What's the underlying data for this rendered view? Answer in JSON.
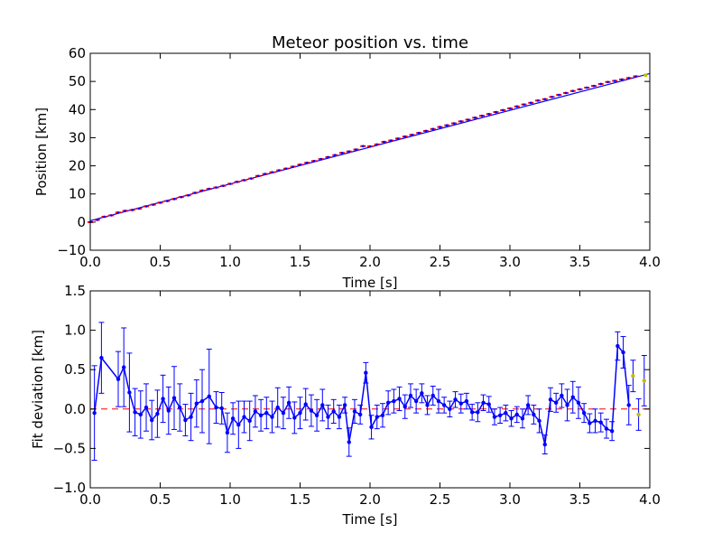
{
  "chart_data": [
    {
      "type": "line",
      "title": "Meteor position vs. time",
      "xlabel": "Time [s]",
      "ylabel": "Position [km]",
      "xlim": [
        0.0,
        4.0
      ],
      "ylim": [
        -10,
        60
      ],
      "xticks": [
        "0.0",
        "0.5",
        "1.0",
        "1.5",
        "2.0",
        "2.5",
        "3.0",
        "3.5",
        "4.0"
      ],
      "yticks": [
        "−10",
        "0",
        "10",
        "20",
        "30",
        "40",
        "50",
        "60"
      ],
      "grid": false,
      "legend": "none",
      "colors": {
        "observed": "#ff0000",
        "fit": "#0000ff",
        "excluded": "#bfbf00"
      },
      "series": [
        {
          "style": "red-points",
          "x": [
            0.0,
            0.05,
            0.1,
            0.15,
            0.2,
            0.25,
            0.3,
            0.35,
            0.4,
            0.45,
            0.5,
            0.55,
            0.6,
            0.65,
            0.7,
            0.75,
            0.8,
            0.85,
            0.9,
            0.95,
            1.0,
            1.05,
            1.1,
            1.15,
            1.2,
            1.25,
            1.3,
            1.35,
            1.4,
            1.45,
            1.5,
            1.55,
            1.6,
            1.65,
            1.7,
            1.75,
            1.8,
            1.85,
            1.9,
            1.95,
            2.0,
            2.05,
            2.1,
            2.15,
            2.2,
            2.25,
            2.3,
            2.35,
            2.4,
            2.45,
            2.5,
            2.55,
            2.6,
            2.65,
            2.7,
            2.75,
            2.8,
            2.85,
            2.9,
            2.95,
            3.0,
            3.05,
            3.1,
            3.15,
            3.2,
            3.25,
            3.3,
            3.35,
            3.4,
            3.45,
            3.5,
            3.55,
            3.6,
            3.65,
            3.7,
            3.75,
            3.8,
            3.85,
            3.9
          ],
          "y": [
            0.0,
            0.8,
            1.9,
            2.4,
            3.4,
            4.0,
            4.3,
            4.8,
            5.6,
            6.2,
            6.9,
            7.5,
            8.2,
            8.9,
            9.5,
            10.4,
            11.2,
            11.8,
            12.3,
            12.9,
            13.6,
            14.3,
            14.9,
            15.5,
            16.4,
            17.1,
            17.7,
            18.4,
            19.0,
            19.7,
            20.4,
            21.1,
            21.7,
            22.4,
            23.1,
            23.8,
            24.6,
            25.1,
            25.8,
            27.0,
            26.9,
            27.6,
            28.5,
            29.0,
            29.7,
            30.4,
            31.0,
            31.7,
            32.4,
            33.1,
            33.8,
            34.4,
            35.1,
            35.8,
            36.4,
            37.1,
            37.8,
            38.4,
            39.1,
            39.8,
            40.4,
            41.1,
            41.8,
            42.4,
            43.2,
            43.7,
            44.5,
            45.2,
            45.9,
            46.6,
            47.2,
            47.8,
            48.4,
            49.1,
            49.8,
            50.2,
            50.7,
            51.2,
            51.8
          ]
        },
        {
          "style": "blue-fit-line",
          "x": [
            0.0,
            4.0
          ],
          "y": [
            0.5,
            52.8
          ]
        }
      ]
    },
    {
      "type": "line",
      "xlabel": "Time [s]",
      "ylabel": "Fit deviation [km]",
      "xlim": [
        0.0,
        4.0
      ],
      "ylim": [
        -1.0,
        1.5
      ],
      "xticks": [
        "0.0",
        "0.5",
        "1.0",
        "1.5",
        "2.0",
        "2.5",
        "3.0",
        "3.5",
        "4.0"
      ],
      "yticks": [
        "−1.0",
        "−0.5",
        "0.0",
        "0.5",
        "1.0",
        "1.5"
      ],
      "grid": false,
      "legend": "none",
      "colors": {
        "residuals": "#0000ff",
        "zero_line": "#ff0000",
        "excluded": "#bfbf00"
      },
      "reference_line_y": 0.0,
      "series": [
        {
          "style": "blue-residuals-with-errorbars",
          "x": [
            0.03,
            0.08,
            0.2,
            0.24,
            0.28,
            0.32,
            0.36,
            0.4,
            0.44,
            0.48,
            0.52,
            0.56,
            0.6,
            0.64,
            0.68,
            0.72,
            0.76,
            0.8,
            0.85,
            0.9,
            0.94,
            0.98,
            1.02,
            1.06,
            1.1,
            1.14,
            1.18,
            1.22,
            1.26,
            1.3,
            1.34,
            1.38,
            1.42,
            1.46,
            1.5,
            1.54,
            1.58,
            1.62,
            1.66,
            1.7,
            1.74,
            1.78,
            1.82,
            1.85,
            1.89,
            1.93,
            1.97,
            2.01,
            2.05,
            2.09,
            2.13,
            2.17,
            2.21,
            2.25,
            2.29,
            2.33,
            2.37,
            2.41,
            2.45,
            2.49,
            2.53,
            2.57,
            2.61,
            2.65,
            2.69,
            2.73,
            2.77,
            2.81,
            2.85,
            2.89,
            2.93,
            2.97,
            3.01,
            3.05,
            3.09,
            3.13,
            3.17,
            3.21,
            3.25,
            3.29,
            3.33,
            3.37,
            3.41,
            3.45,
            3.49,
            3.53,
            3.57,
            3.61,
            3.65,
            3.69,
            3.73,
            3.77,
            3.81,
            3.85
          ],
          "y": [
            -0.05,
            0.65,
            0.38,
            0.53,
            0.21,
            -0.04,
            -0.07,
            0.02,
            -0.14,
            -0.06,
            0.13,
            -0.02,
            0.14,
            0.02,
            -0.14,
            -0.1,
            0.07,
            0.1,
            0.16,
            0.02,
            0.01,
            -0.3,
            -0.12,
            -0.2,
            -0.1,
            -0.15,
            -0.03,
            -0.08,
            -0.05,
            -0.1,
            0.02,
            -0.05,
            0.08,
            -0.11,
            -0.05,
            0.06,
            -0.02,
            -0.08,
            0.05,
            -0.1,
            -0.03,
            -0.1,
            0.05,
            -0.42,
            -0.03,
            -0.07,
            0.46,
            -0.23,
            -0.1,
            -0.08,
            0.08,
            0.1,
            0.13,
            0.03,
            0.17,
            0.1,
            0.2,
            0.05,
            0.17,
            0.1,
            0.05,
            0.0,
            0.12,
            0.07,
            0.1,
            -0.04,
            -0.04,
            0.08,
            0.06,
            -0.1,
            -0.08,
            -0.05,
            -0.12,
            -0.07,
            -0.12,
            0.05,
            -0.07,
            -0.15,
            -0.45,
            0.12,
            0.08,
            0.17,
            0.05,
            0.15,
            0.08,
            -0.05,
            -0.18,
            -0.15,
            -0.17,
            -0.25,
            -0.28,
            0.8,
            0.72,
            0.05
          ],
          "err": [
            0.6,
            0.45,
            0.35,
            0.5,
            0.5,
            0.3,
            0.3,
            0.3,
            0.25,
            0.3,
            0.3,
            0.3,
            0.4,
            0.3,
            0.2,
            0.3,
            0.3,
            0.4,
            0.6,
            0.2,
            0.2,
            0.25,
            0.2,
            0.3,
            0.2,
            0.25,
            0.2,
            0.2,
            0.2,
            0.2,
            0.25,
            0.2,
            0.2,
            0.2,
            0.2,
            0.2,
            0.2,
            0.2,
            0.2,
            0.15,
            0.15,
            0.15,
            0.1,
            0.18,
            0.15,
            0.12,
            0.13,
            0.15,
            0.15,
            0.15,
            0.15,
            0.15,
            0.15,
            0.15,
            0.15,
            0.15,
            0.12,
            0.12,
            0.12,
            0.15,
            0.1,
            0.1,
            0.1,
            0.12,
            0.1,
            0.1,
            0.12,
            0.1,
            0.1,
            0.1,
            0.1,
            0.1,
            0.1,
            0.1,
            0.12,
            0.12,
            0.12,
            0.15,
            0.12,
            0.15,
            0.12,
            0.15,
            0.2,
            0.2,
            0.2,
            0.12,
            0.12,
            0.15,
            0.12,
            0.12,
            0.12,
            0.18,
            0.2,
            0.25
          ]
        },
        {
          "style": "yellow-excluded-points",
          "x": [
            3.88,
            3.92,
            3.96
          ],
          "y": [
            0.42,
            -0.07,
            0.36
          ],
          "err": [
            0.2,
            0.2,
            0.32
          ]
        }
      ]
    }
  ]
}
